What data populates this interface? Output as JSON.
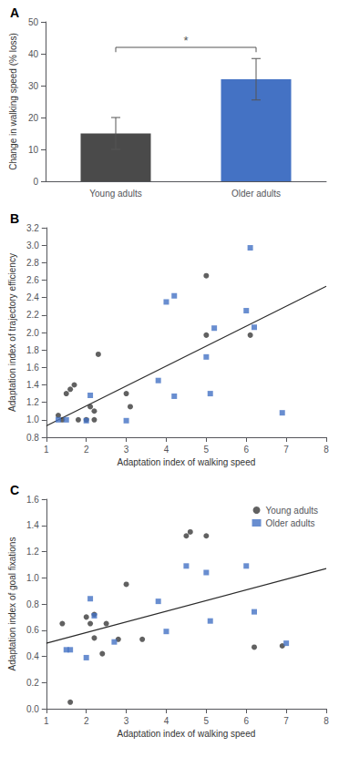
{
  "chart_data": [
    {
      "type": "bar",
      "title": "A",
      "categories": [
        "Young adults",
        "Older adults"
      ],
      "values": [
        15.0,
        32.0
      ],
      "errors": [
        5.0,
        6.5
      ],
      "colors": [
        "#4a4a4a",
        "#4472c4"
      ],
      "ylabel": "Change in walking speed (% loss)",
      "ylim": [
        0,
        50
      ],
      "yticks": [
        0,
        10,
        20,
        30,
        40,
        50
      ],
      "grid": false,
      "annotations": [
        {
          "text": "*",
          "y": 42
        }
      ]
    },
    {
      "type": "scatter",
      "title": "B",
      "xlabel": "Adaptation index of walking speed",
      "ylabel": "Adaptation index of trajectory efficiency",
      "xlim": [
        1,
        8
      ],
      "ylim": [
        0.8,
        3.2
      ],
      "xticks": [
        1,
        2,
        3,
        4,
        5,
        6,
        7,
        8
      ],
      "yticks": [
        0.8,
        {
          "value": 1.0,
          "label": "1.0"
        },
        1.2,
        1.4,
        1.6,
        1.8,
        {
          "value": 2.0,
          "label": "2.0"
        },
        2.2,
        2.4,
        2.6,
        2.8,
        {
          "value": 3.0,
          "label": "3.0"
        },
        3.2
      ],
      "grid": false,
      "series": [
        {
          "type": "scatter",
          "marker": "circle",
          "color": "#3a3a3a",
          "x": [
            1.3,
            1.4,
            1.5,
            1.6,
            1.7,
            1.8,
            2.0,
            2.1,
            2.2,
            2.2,
            2.3,
            3.0,
            3.1,
            5.0,
            5.0,
            6.1
          ],
          "values": [
            1.05,
            1.0,
            1.3,
            1.35,
            1.4,
            1.0,
            1.0,
            1.15,
            1.1,
            1.0,
            1.75,
            1.3,
            1.15,
            2.65,
            1.97,
            1.97
          ]
        },
        {
          "type": "scatter",
          "marker": "square",
          "color": "#4472c4",
          "x": [
            1.3,
            1.5,
            2.0,
            2.1,
            3.0,
            3.8,
            4.0,
            4.2,
            4.2,
            5.0,
            5.1,
            5.2,
            6.0,
            6.1,
            6.2,
            6.9
          ],
          "values": [
            1.0,
            1.0,
            0.99,
            1.28,
            0.99,
            1.45,
            2.35,
            1.27,
            2.42,
            1.72,
            1.3,
            2.05,
            2.25,
            2.97,
            2.06,
            1.08
          ]
        },
        {
          "type": "line",
          "line_style": "solid",
          "color": "#2a2a2a",
          "x": [
            1.0,
            8.0
          ],
          "values": [
            0.93,
            2.53
          ]
        }
      ]
    },
    {
      "type": "scatter",
      "title": "C",
      "xlabel": "Adaptation index of walking speed",
      "ylabel": "Adaptation index of goal fixations",
      "xlim": [
        1,
        8
      ],
      "ylim": [
        0.0,
        1.6
      ],
      "xticks": [
        1,
        2,
        3,
        4,
        5,
        6,
        7,
        8
      ],
      "yticks": [
        {
          "value": 0.0,
          "label": "0.0"
        },
        0.2,
        0.4,
        0.6,
        0.8,
        {
          "value": 1.0,
          "label": "1.0"
        },
        1.2,
        1.4,
        1.6
      ],
      "grid": false,
      "legend": "upper right",
      "series": [
        {
          "name": "Young adults",
          "type": "scatter",
          "marker": "circle",
          "color": "#3a3a3a",
          "x": [
            1.4,
            1.6,
            2.0,
            2.1,
            2.2,
            2.2,
            2.4,
            2.5,
            2.8,
            3.0,
            3.4,
            4.5,
            4.6,
            5.0,
            6.2,
            6.9
          ],
          "values": [
            0.65,
            0.05,
            0.7,
            0.65,
            0.72,
            0.54,
            0.42,
            0.65,
            0.53,
            0.95,
            0.53,
            1.32,
            1.35,
            1.32,
            0.47,
            0.48
          ]
        },
        {
          "name": "Older adults",
          "type": "scatter",
          "marker": "square",
          "color": "#4472c4",
          "x": [
            1.5,
            1.6,
            2.0,
            2.1,
            2.2,
            2.7,
            3.8,
            4.0,
            4.5,
            5.0,
            5.1,
            6.0,
            6.2,
            7.0
          ],
          "values": [
            0.45,
            0.45,
            0.39,
            0.84,
            0.71,
            0.51,
            0.82,
            0.59,
            1.09,
            1.04,
            0.67,
            1.09,
            0.74,
            0.5
          ]
        },
        {
          "type": "line",
          "line_style": "solid",
          "color": "#2a2a2a",
          "x": [
            1.0,
            8.0
          ],
          "values": [
            0.5,
            1.07
          ]
        }
      ]
    }
  ]
}
